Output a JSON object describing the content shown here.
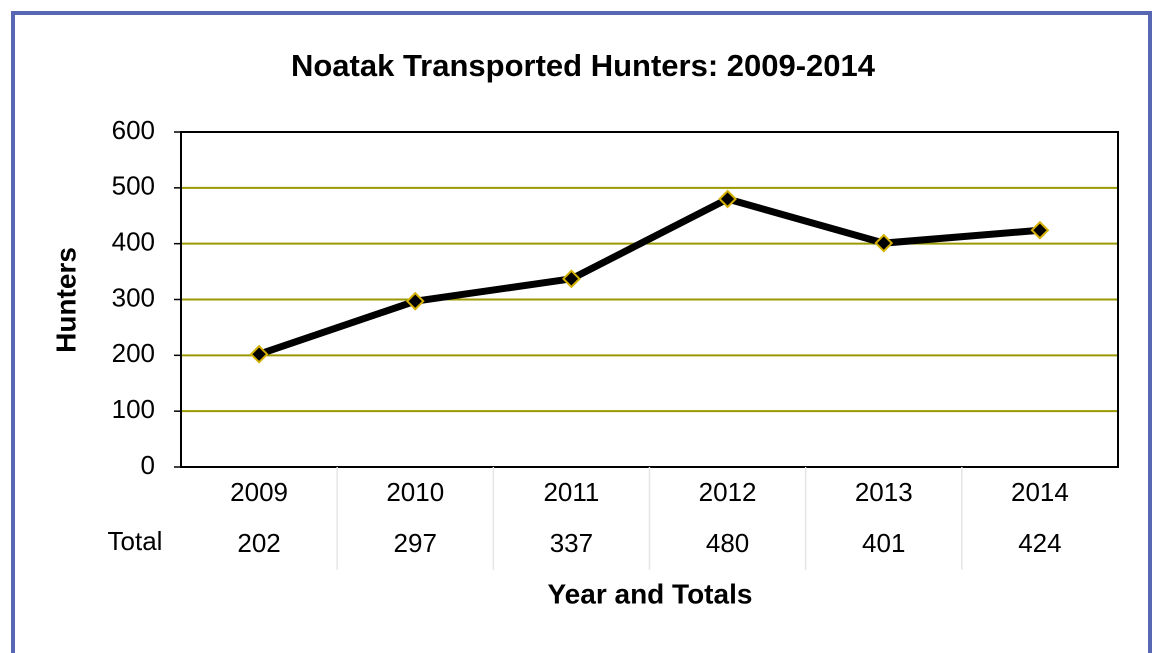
{
  "chart_data": {
    "type": "line",
    "title": "Noatak Transported Hunters: 2009-2014",
    "xlabel": "Year and Totals",
    "ylabel": "Hunters",
    "table_row_label": "Total",
    "categories": [
      "2009",
      "2010",
      "2011",
      "2012",
      "2013",
      "2014"
    ],
    "series": [
      {
        "name": "Total",
        "color": "#000000",
        "marker_color": "#d4b000",
        "values": [
          202,
          297,
          337,
          480,
          401,
          424
        ]
      }
    ],
    "ylim": [
      0,
      600
    ],
    "yticks": [
      0,
      100,
      200,
      300,
      400,
      500,
      600
    ],
    "grid": true,
    "grid_color": "#9a9a00"
  }
}
